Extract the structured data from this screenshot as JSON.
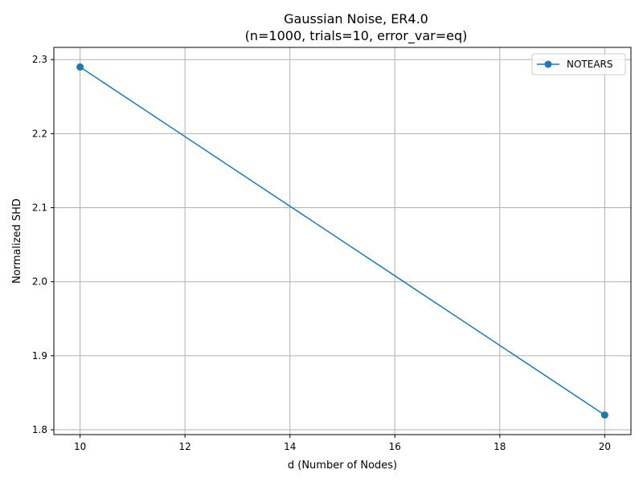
{
  "chart_data": {
    "type": "line",
    "title": "Gaussian Noise, ER4.0",
    "subtitle": "(n=1000, trials=10, error_var=eq)",
    "xlabel": "d (Number of Nodes)",
    "ylabel": "Normalized SHD",
    "xlim": [
      9.5,
      20.5
    ],
    "ylim": [
      1.7935,
      2.3165
    ],
    "xticks": [
      10,
      12,
      14,
      16,
      18,
      20
    ],
    "yticks": [
      1.8,
      1.9,
      2.0,
      2.1,
      2.2,
      2.3
    ],
    "ytick_labels": [
      "1.8",
      "1.9",
      "2.0",
      "2.1",
      "2.2",
      "2.3"
    ],
    "grid": true,
    "legend_position": "top-right",
    "series": [
      {
        "name": "NOTEARS",
        "color": "#1f77b4",
        "marker": "circle",
        "x": [
          10,
          20
        ],
        "y": [
          2.29,
          1.82
        ]
      }
    ]
  }
}
